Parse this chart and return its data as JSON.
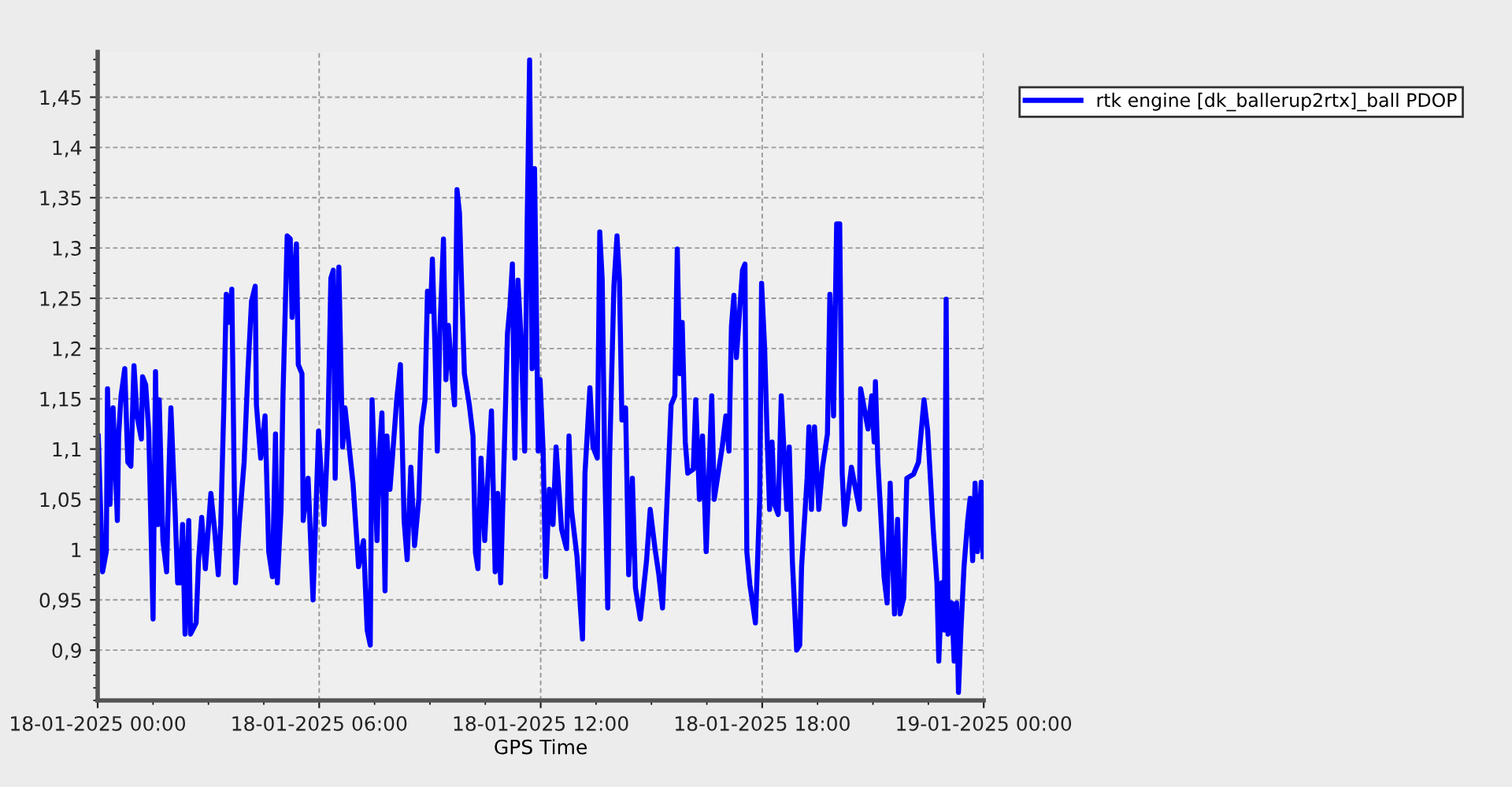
{
  "chart_data": {
    "type": "line",
    "xlabel": "GPS Time",
    "xlim": [
      "2025-01-18T00:00",
      "2025-01-19T00:00"
    ],
    "xticks": [
      {
        "value": "2025-01-18T00:00",
        "label": "18-01-2025 00:00"
      },
      {
        "value": "2025-01-18T06:00",
        "label": "18-01-2025 06:00"
      },
      {
        "value": "2025-01-18T12:00",
        "label": "18-01-2025 12:00"
      },
      {
        "value": "2025-01-18T18:00",
        "label": "18-01-2025 18:00"
      },
      {
        "value": "2025-01-19T00:00",
        "label": "19-01-2025 00:00"
      }
    ],
    "ylim": [
      0.85,
      1.495
    ],
    "yticks": [
      {
        "value": 0.9,
        "label": "0,9"
      },
      {
        "value": 0.95,
        "label": "0,95"
      },
      1,
      {
        "value": 1.05,
        "label": "1,05"
      },
      {
        "value": 1.1,
        "label": "1,1"
      },
      {
        "value": 1.15,
        "label": "1,15"
      },
      {
        "value": 1.2,
        "label": "1,2"
      },
      {
        "value": 1.25,
        "label": "1,25"
      },
      {
        "value": 1.3,
        "label": "1,3"
      },
      {
        "value": 1.35,
        "label": "1,35"
      },
      {
        "value": 1.4,
        "label": "1,4"
      },
      {
        "value": 1.45,
        "label": "1,45"
      }
    ],
    "grid": true,
    "legend": "top right",
    "marker": "none",
    "line_style": "solid",
    "series": [
      {
        "name": "rtk engine [dk_ballerup2rtx]_ball PDOP",
        "color": "#0000ff",
        "x": [
          "2025-01-18T00:01",
          "2025-01-18T00:08",
          "2025-01-18T00:14",
          "2025-01-18T00:16",
          "2025-01-18T00:20",
          "2025-01-18T00:25",
          "2025-01-18T00:32",
          "2025-01-18T00:34",
          "2025-01-18T00:38",
          "2025-01-18T00:44",
          "2025-01-18T00:49",
          "2025-01-18T00:54",
          "2025-01-18T00:59",
          "2025-01-18T01:04",
          "2025-01-18T01:11",
          "2025-01-18T01:13",
          "2025-01-18T01:18",
          "2025-01-18T01:23",
          "2025-01-18T01:30",
          "2025-01-18T01:34",
          "2025-01-18T01:38",
          "2025-01-18T01:40",
          "2025-01-18T01:46",
          "2025-01-18T01:52",
          "2025-01-18T01:56",
          "2025-01-18T01:59",
          "2025-01-18T02:06",
          "2025-01-18T02:10",
          "2025-01-18T02:14",
          "2025-01-18T02:18",
          "2025-01-18T02:22",
          "2025-01-18T02:28",
          "2025-01-18T02:31",
          "2025-01-18T02:40",
          "2025-01-18T02:44",
          "2025-01-18T02:49",
          "2025-01-18T02:55",
          "2025-01-18T03:04",
          "2025-01-18T03:10",
          "2025-01-18T03:16",
          "2025-01-18T03:20",
          "2025-01-18T03:25",
          "2025-01-18T03:29",
          "2025-01-18T03:34",
          "2025-01-18T03:38",
          "2025-01-18T03:44",
          "2025-01-18T03:50",
          "2025-01-18T03:58",
          "2025-01-18T04:04",
          "2025-01-18T04:10",
          "2025-01-18T04:16",
          "2025-01-18T04:18",
          "2025-01-18T04:25",
          "2025-01-18T04:32",
          "2025-01-18T04:38",
          "2025-01-18T04:44",
          "2025-01-18T04:49",
          "2025-01-18T04:52",
          "2025-01-18T04:58",
          "2025-01-18T05:01",
          "2025-01-18T05:08",
          "2025-01-18T05:13",
          "2025-01-18T05:16",
          "2025-01-18T05:23",
          "2025-01-18T05:26",
          "2025-01-18T05:32",
          "2025-01-18T05:34",
          "2025-01-18T05:42",
          "2025-01-18T05:50",
          "2025-01-18T05:59",
          "2025-01-18T06:08",
          "2025-01-18T06:14",
          "2025-01-18T06:19",
          "2025-01-18T06:23",
          "2025-01-18T06:26",
          "2025-01-18T06:32",
          "2025-01-18T06:38",
          "2025-01-18T06:42",
          "2025-01-18T06:55",
          "2025-01-18T07:04",
          "2025-01-18T07:12",
          "2025-01-18T07:18",
          "2025-01-18T07:23",
          "2025-01-18T07:26",
          "2025-01-18T07:34",
          "2025-01-18T07:38",
          "2025-01-18T07:42",
          "2025-01-18T07:47",
          "2025-01-18T07:50",
          "2025-01-18T07:55",
          "2025-01-18T07:59",
          "2025-01-18T08:06",
          "2025-01-18T08:12",
          "2025-01-18T08:18",
          "2025-01-18T08:23",
          "2025-01-18T08:29",
          "2025-01-18T08:35",
          "2025-01-18T08:42",
          "2025-01-18T08:46",
          "2025-01-18T08:52",
          "2025-01-18T08:56",
          "2025-01-18T09:01",
          "2025-01-18T09:04",
          "2025-01-18T09:08",
          "2025-01-18T09:12",
          "2025-01-18T09:16",
          "2025-01-18T09:22",
          "2025-01-18T09:26",
          "2025-01-18T09:30",
          "2025-01-18T09:35",
          "2025-01-18T09:40",
          "2025-01-18T09:44",
          "2025-01-18T09:48",
          "2025-01-18T09:52",
          "2025-01-18T09:56",
          "2025-01-18T10:04",
          "2025-01-18T10:10",
          "2025-01-18T10:14",
          "2025-01-18T10:18",
          "2025-01-18T10:23",
          "2025-01-18T10:29",
          "2025-01-18T10:35",
          "2025-01-18T10:40",
          "2025-01-18T10:46",
          "2025-01-18T10:50",
          "2025-01-18T10:55",
          "2025-01-18T11:01",
          "2025-01-18T11:06",
          "2025-01-18T11:10",
          "2025-01-18T11:14",
          "2025-01-18T11:18",
          "2025-01-18T11:23",
          "2025-01-18T11:28",
          "2025-01-18T11:34",
          "2025-01-18T11:38",
          "2025-01-18T11:42",
          "2025-01-18T11:46",
          "2025-01-18T11:50",
          "2025-01-18T11:56",
          "2025-01-18T11:59",
          "2025-01-18T12:04",
          "2025-01-18T12:08",
          "2025-01-18T12:14",
          "2025-01-18T12:20",
          "2025-01-18T12:25",
          "2025-01-18T12:34",
          "2025-01-18T12:42",
          "2025-01-18T12:46",
          "2025-01-18T12:50",
          "2025-01-18T12:59",
          "2025-01-18T13:08",
          "2025-01-18T13:12",
          "2025-01-18T13:20",
          "2025-01-18T13:25",
          "2025-01-18T13:32",
          "2025-01-18T13:36",
          "2025-01-18T13:40",
          "2025-01-18T13:44",
          "2025-01-18T13:49",
          "2025-01-18T13:52",
          "2025-01-18T13:59",
          "2025-01-18T14:04",
          "2025-01-18T14:08",
          "2025-01-18T14:12",
          "2025-01-18T14:18",
          "2025-01-18T14:23",
          "2025-01-18T14:29",
          "2025-01-18T14:34",
          "2025-01-18T14:42",
          "2025-01-18T14:52",
          "2025-01-18T14:58",
          "2025-01-18T15:06",
          "2025-01-18T15:12",
          "2025-01-18T15:18",
          "2025-01-18T15:23",
          "2025-01-18T15:32",
          "2025-01-18T15:38",
          "2025-01-18T15:42",
          "2025-01-18T15:46",
          "2025-01-18T15:50",
          "2025-01-18T15:55",
          "2025-01-18T15:59",
          "2025-01-18T16:08",
          "2025-01-18T16:12",
          "2025-01-18T16:18",
          "2025-01-18T16:23",
          "2025-01-18T16:29",
          "2025-01-18T16:38",
          "2025-01-18T16:42",
          "2025-01-18T16:55",
          "2025-01-18T17:01",
          "2025-01-18T17:06",
          "2025-01-18T17:10",
          "2025-01-18T17:14",
          "2025-01-18T17:18",
          "2025-01-18T17:28",
          "2025-01-18T17:32",
          "2025-01-18T17:35",
          "2025-01-18T17:40",
          "2025-01-18T17:49",
          "2025-01-18T17:56",
          "2025-01-18T17:59",
          "2025-01-18T18:04",
          "2025-01-18T18:08",
          "2025-01-18T18:12",
          "2025-01-18T18:16",
          "2025-01-18T18:20",
          "2025-01-18T18:26",
          "2025-01-18T18:31",
          "2025-01-18T18:40",
          "2025-01-18T18:44",
          "2025-01-18T18:49",
          "2025-01-18T18:56",
          "2025-01-18T19:01",
          "2025-01-18T19:04",
          "2025-01-18T19:13",
          "2025-01-18T19:16",
          "2025-01-18T19:20",
          "2025-01-18T19:25",
          "2025-01-18T19:32",
          "2025-01-18T19:38",
          "2025-01-18T19:46",
          "2025-01-18T19:50",
          "2025-01-18T19:56",
          "2025-01-18T20:01",
          "2025-01-18T20:06",
          "2025-01-18T20:10",
          "2025-01-18T20:14",
          "2025-01-18T20:25",
          "2025-01-18T20:38",
          "2025-01-18T20:40",
          "2025-01-18T20:52",
          "2025-01-18T20:58",
          "2025-01-18T21:02",
          "2025-01-18T21:04",
          "2025-01-18T21:08",
          "2025-01-18T21:14",
          "2025-01-18T21:18",
          "2025-01-18T21:23",
          "2025-01-18T21:28",
          "2025-01-18T21:35",
          "2025-01-18T21:40",
          "2025-01-18T21:44",
          "2025-01-18T21:50",
          "2025-01-18T21:55",
          "2025-01-18T22:06",
          "2025-01-18T22:14",
          "2025-01-18T22:23",
          "2025-01-18T22:29",
          "2025-01-18T22:38",
          "2025-01-18T22:44",
          "2025-01-18T22:47",
          "2025-01-18T22:52",
          "2025-01-18T22:56",
          "2025-01-18T22:59",
          "2025-01-18T23:02",
          "2025-01-18T23:08",
          "2025-01-18T23:12",
          "2025-01-18T23:16",
          "2025-01-18T23:19",
          "2025-01-18T23:23",
          "2025-01-18T23:28",
          "2025-01-18T23:34",
          "2025-01-18T23:38",
          "2025-01-18T23:42",
          "2025-01-18T23:46",
          "2025-01-18T23:50",
          "2025-01-18T23:56",
          "2025-01-18T23:59"
        ],
        "values": [
          1.113,
          0.978,
          0.998,
          1.16,
          1.045,
          1.141,
          1.029,
          1.113,
          1.153,
          1.18,
          1.087,
          1.083,
          1.183,
          1.133,
          1.11,
          1.172,
          1.164,
          1.118,
          0.931,
          1.177,
          1.025,
          1.149,
          1.009,
          0.978,
          1.082,
          1.141,
          1.035,
          0.967,
          0.967,
          1.025,
          0.916,
          1.029,
          0.916,
          0.927,
          0.99,
          1.032,
          0.981,
          1.056,
          1.02,
          0.975,
          1.025,
          1.141,
          1.254,
          1.226,
          1.259,
          0.967,
          1.025,
          1.087,
          1.175,
          1.247,
          1.262,
          1.144,
          1.091,
          1.133,
          0.998,
          0.973,
          1.115,
          0.967,
          1.04,
          1.149,
          1.312,
          1.309,
          1.231,
          1.304,
          1.184,
          1.175,
          1.029,
          1.071,
          0.95,
          1.118,
          1.025,
          1.113,
          1.27,
          1.278,
          1.071,
          1.281,
          1.102,
          1.141,
          1.066,
          0.983,
          1.009,
          0.92,
          0.905,
          1.149,
          1.009,
          1.098,
          1.136,
          0.959,
          1.113,
          1.06,
          1.091,
          1.149,
          1.184,
          1.029,
          0.99,
          1.082,
          1.004,
          1.051,
          1.122,
          1.149,
          1.257,
          1.237,
          1.289,
          1.206,
          1.098,
          1.215,
          1.309,
          1.169,
          1.223,
          1.18,
          1.144,
          1.358,
          1.335,
          1.253,
          1.175,
          1.144,
          1.113,
          0.997,
          0.981,
          1.091,
          1.009,
          1.082,
          1.138,
          0.978,
          1.056,
          0.967,
          1.102,
          1.215,
          1.242,
          1.284,
          1.091,
          1.268,
          1.211,
          1.098,
          1.324,
          1.487,
          1.18,
          1.379,
          1.098,
          1.169,
          1.098,
          0.973,
          1.06,
          1.025,
          1.102,
          1.02,
          1.001,
          1.113,
          1.04,
          0.993,
          0.911,
          1.076,
          1.161,
          1.102,
          1.091,
          1.316,
          1.268,
          1.087,
          0.942,
          1.091,
          1.262,
          1.312,
          1.268,
          1.129,
          1.141,
          0.975,
          1.071,
          0.962,
          0.931,
          0.989,
          1.04,
          1.0,
          0.975,
          0.942,
          1.014,
          1.144,
          1.153,
          1.299,
          1.175,
          1.226,
          1.107,
          1.076,
          1.08,
          1.149,
          1.05,
          1.113,
          0.998,
          1.153,
          1.05,
          1.102,
          1.133,
          1.098,
          1.222,
          1.253,
          1.191,
          1.278,
          1.284,
          0.998,
          0.965,
          0.927,
          1.051,
          1.265,
          1.2,
          1.113,
          1.04,
          1.107,
          1.045,
          1.035,
          1.153,
          1.04,
          1.102,
          0.989,
          0.9,
          0.905,
          0.983,
          1.071,
          1.122,
          1.04,
          1.122,
          1.04,
          1.082,
          1.115,
          1.254,
          1.133,
          1.324,
          1.324,
          1.076,
          1.025,
          1.082,
          1.04,
          1.16,
          1.12,
          1.153,
          1.107,
          1.167,
          1.087,
          1.02,
          0.973,
          0.947,
          1.066,
          0.936,
          1.03,
          0.936,
          0.952,
          1.071,
          1.075,
          1.087,
          1.149,
          1.118,
          1.02,
          0.967,
          0.889,
          0.967,
          0.92,
          1.249,
          0.916,
          0.947,
          0.889,
          0.947,
          0.858,
          0.92,
          0.983,
          1.029,
          1.051,
          0.989,
          1.066,
          0.998,
          1.067,
          0.993
        ]
      }
    ]
  }
}
